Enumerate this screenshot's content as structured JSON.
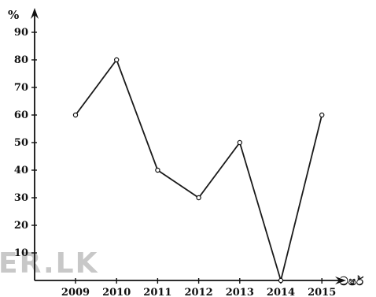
{
  "watermark": "ER.LK",
  "chart_data": {
    "type": "line",
    "ylabel": "%",
    "xlabel": "වර්ෂ",
    "categories": [
      "2009",
      "2010",
      "2011",
      "2012",
      "2013",
      "2014",
      "2015"
    ],
    "values": [
      60,
      80,
      40,
      30,
      50,
      0,
      60
    ],
    "y_ticks": [
      10,
      20,
      30,
      40,
      50,
      60,
      70,
      80,
      90
    ],
    "ylim": [
      0,
      95
    ],
    "grid": false,
    "legend": "none",
    "line_color": "#1a1a1a"
  }
}
